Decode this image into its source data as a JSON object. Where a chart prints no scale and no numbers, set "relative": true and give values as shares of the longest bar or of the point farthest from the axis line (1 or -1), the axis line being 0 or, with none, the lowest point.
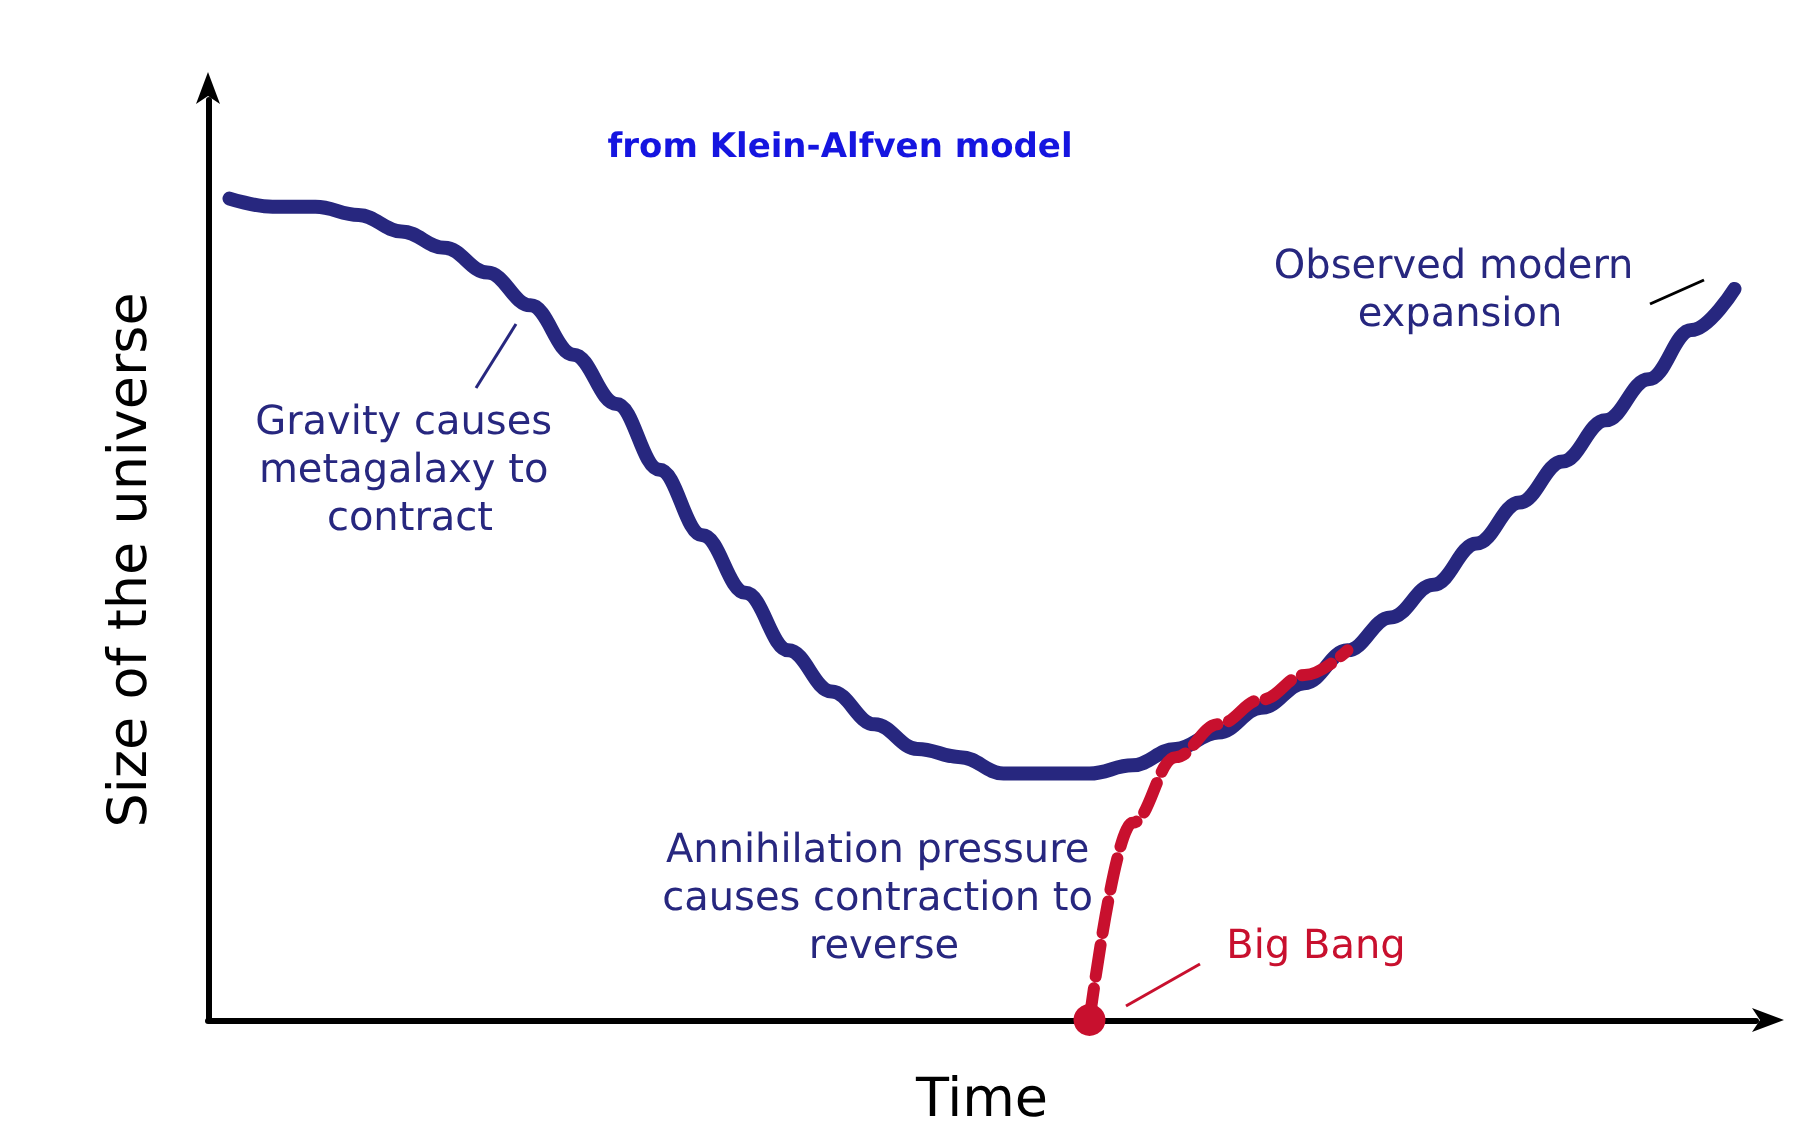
{
  "chart_data": {
    "type": "line",
    "relative": true,
    "title": "from Klein-Alfven model",
    "xlabel": "Time",
    "ylabel": "Size of the universe",
    "categories": [
      null,
      null,
      null,
      null,
      null,
      null,
      null,
      null,
      null,
      null,
      null,
      null,
      null,
      null,
      null,
      null,
      null,
      null,
      null,
      null,
      null,
      null,
      null,
      null,
      null,
      null,
      null,
      null,
      null,
      null,
      null,
      null,
      null,
      null,
      null,
      null
    ],
    "series": [
      {
        "color": "#27277f",
        "line_style": "solid",
        "values": [
          1.0,
          0.99,
          0.99,
          0.98,
          0.96,
          0.94,
          0.91,
          0.87,
          0.81,
          0.75,
          0.67,
          0.59,
          0.52,
          0.45,
          0.4,
          0.36,
          0.33,
          0.32,
          0.3,
          0.3,
          0.3,
          0.31,
          0.33,
          0.35,
          0.38,
          0.41,
          0.45,
          0.49,
          0.53,
          0.58,
          0.63,
          0.68,
          0.73,
          0.78,
          0.84,
          0.89
        ]
      },
      {
        "color": "#c8102e",
        "line_style": "dashed",
        "values": [
          null,
          null,
          null,
          null,
          null,
          null,
          null,
          null,
          null,
          null,
          null,
          null,
          null,
          null,
          null,
          null,
          null,
          null,
          null,
          null,
          0.0,
          0.24,
          0.32,
          0.36,
          0.39,
          0.42,
          0.45,
          null,
          null,
          null,
          null,
          null,
          null,
          null,
          null,
          null
        ]
      }
    ],
    "annotations": [
      "Gravity causes metagalaxy to contract",
      "Annihilation pressure causes contraction to reverse",
      "Big Bang",
      "Observed modern expansion"
    ],
    "grid": false
  }
}
